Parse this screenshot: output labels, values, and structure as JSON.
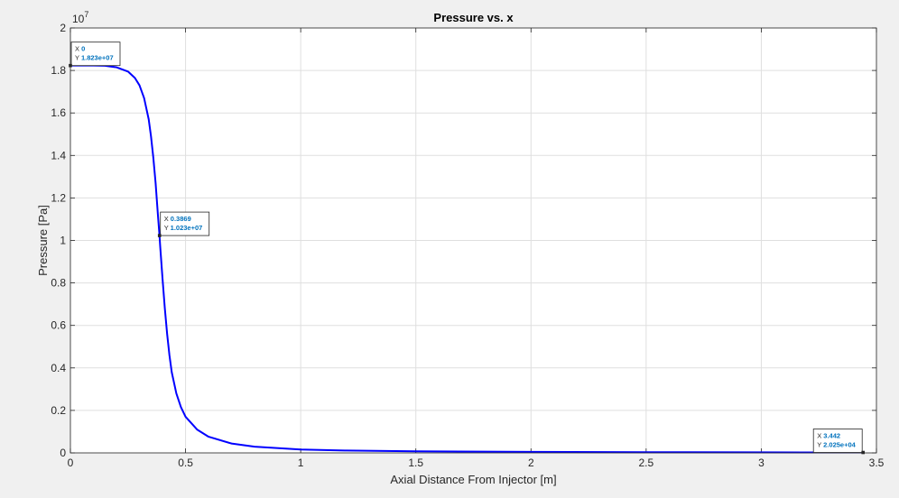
{
  "chart_data": {
    "type": "line",
    "title": "Pressure vs. x",
    "xlabel": "Axial Distance From Injector [m]",
    "ylabel": "Pressure [Pa]",
    "y_exponent_base": "10",
    "y_exponent_power": "7",
    "xlim": [
      0,
      3.5
    ],
    "ylim": [
      0,
      20000000
    ],
    "y_scale_factor": 10000000,
    "grid": true,
    "x_ticks": [
      "0",
      "0.5",
      "1",
      "1.5",
      "2",
      "2.5",
      "3",
      "3.5"
    ],
    "y_ticks": [
      "0",
      "0.2",
      "0.4",
      "0.6",
      "0.8",
      "1",
      "1.2",
      "1.4",
      "1.6",
      "1.8",
      "2"
    ],
    "line_color": "#0000ff",
    "series": [
      {
        "x": [
          0,
          0.1,
          0.15,
          0.2,
          0.25,
          0.28,
          0.3,
          0.32,
          0.34,
          0.35,
          0.36,
          0.37,
          0.38,
          0.3869,
          0.39,
          0.4,
          0.41,
          0.42,
          0.43,
          0.44,
          0.46,
          0.48,
          0.5,
          0.55,
          0.6,
          0.7,
          0.8,
          1.0,
          1.2,
          1.5,
          2.0,
          2.5,
          3.0,
          3.442
        ],
        "y": [
          18230000,
          18230000,
          18220000,
          18150000,
          17950000,
          17650000,
          17300000,
          16700000,
          15700000,
          14900000,
          13900000,
          12700000,
          11200000,
          10230000,
          9700000,
          8200000,
          6800000,
          5600000,
          4600000,
          3800000,
          2800000,
          2150000,
          1700000,
          1100000,
          760000,
          440000,
          290000,
          160000,
          110000,
          75000,
          48000,
          33000,
          25000,
          20250
        ]
      }
    ],
    "datatips": [
      {
        "x_label": "X",
        "x_value": "0",
        "y_label": "Y",
        "y_value": "1.823e+07",
        "x": 0,
        "y": 18230000
      },
      {
        "x_label": "X",
        "x_value": "0.3869",
        "y_label": "Y",
        "y_value": "1.023e+07",
        "x": 0.3869,
        "y": 10230000
      },
      {
        "x_label": "X",
        "x_value": "3.442",
        "y_label": "Y",
        "y_value": "2.025e+04",
        "x": 3.442,
        "y": 20250
      }
    ]
  }
}
